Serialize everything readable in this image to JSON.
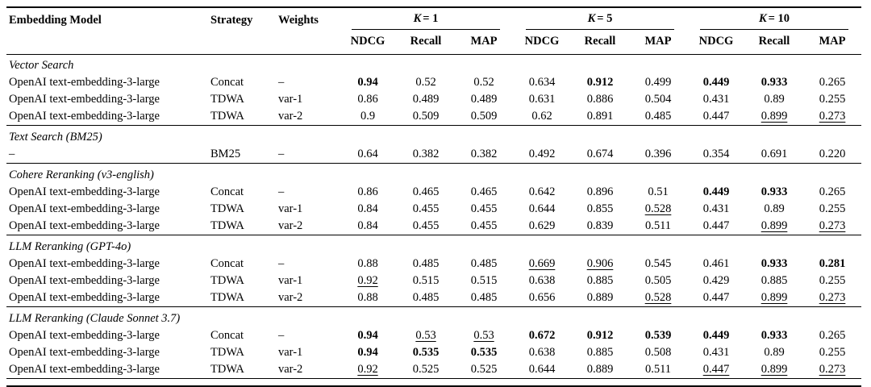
{
  "colors": {
    "background": "#ffffff",
    "text": "#000000",
    "rule": "#000000"
  },
  "table": {
    "columns": [
      "Embedding Model",
      "Strategy",
      "Weights"
    ],
    "k_groups": [
      {
        "symbol": "K",
        "rest": "= 1"
      },
      {
        "symbol": "K",
        "rest": "= 5"
      },
      {
        "symbol": "K",
        "rest": "= 10"
      }
    ],
    "metric_headers": [
      "NDCG",
      "Recall",
      "MAP",
      "NDCG",
      "Recall",
      "MAP",
      "NDCG",
      "Recall",
      "MAP"
    ],
    "sections": [
      {
        "title": "Vector Search",
        "rows": [
          {
            "model": "OpenAI text-embedding-3-large",
            "strategy": "Concat",
            "weights": "–",
            "values": [
              {
                "v": "0.94",
                "f": "b"
              },
              {
                "v": "0.52",
                "f": ""
              },
              {
                "v": "0.52",
                "f": ""
              },
              {
                "v": "0.634",
                "f": ""
              },
              {
                "v": "0.912",
                "f": "b"
              },
              {
                "v": "0.499",
                "f": ""
              },
              {
                "v": "0.449",
                "f": "b"
              },
              {
                "v": "0.933",
                "f": "b"
              },
              {
                "v": "0.265",
                "f": ""
              }
            ]
          },
          {
            "model": "OpenAI text-embedding-3-large",
            "strategy": "TDWA",
            "weights": "var-1",
            "values": [
              {
                "v": "0.86",
                "f": ""
              },
              {
                "v": "0.489",
                "f": ""
              },
              {
                "v": "0.489",
                "f": ""
              },
              {
                "v": "0.631",
                "f": ""
              },
              {
                "v": "0.886",
                "f": ""
              },
              {
                "v": "0.504",
                "f": ""
              },
              {
                "v": "0.431",
                "f": ""
              },
              {
                "v": "0.89",
                "f": ""
              },
              {
                "v": "0.255",
                "f": ""
              }
            ]
          },
          {
            "model": "OpenAI text-embedding-3-large",
            "strategy": "TDWA",
            "weights": "var-2",
            "values": [
              {
                "v": "0.9",
                "f": ""
              },
              {
                "v": "0.509",
                "f": ""
              },
              {
                "v": "0.509",
                "f": ""
              },
              {
                "v": "0.62",
                "f": ""
              },
              {
                "v": "0.891",
                "f": ""
              },
              {
                "v": "0.485",
                "f": ""
              },
              {
                "v": "0.447",
                "f": ""
              },
              {
                "v": "0.899",
                "f": "u"
              },
              {
                "v": "0.273",
                "f": "u"
              }
            ]
          }
        ]
      },
      {
        "title": "Text Search (BM25)",
        "rows": [
          {
            "model": "–",
            "strategy": "BM25",
            "weights": "–",
            "values": [
              {
                "v": "0.64",
                "f": ""
              },
              {
                "v": "0.382",
                "f": ""
              },
              {
                "v": "0.382",
                "f": ""
              },
              {
                "v": "0.492",
                "f": ""
              },
              {
                "v": "0.674",
                "f": ""
              },
              {
                "v": "0.396",
                "f": ""
              },
              {
                "v": "0.354",
                "f": ""
              },
              {
                "v": "0.691",
                "f": ""
              },
              {
                "v": "0.220",
                "f": ""
              }
            ]
          }
        ]
      },
      {
        "title": "Cohere Reranking (v3-english)",
        "rows": [
          {
            "model": "OpenAI text-embedding-3-large",
            "strategy": "Concat",
            "weights": "–",
            "values": [
              {
                "v": "0.86",
                "f": ""
              },
              {
                "v": "0.465",
                "f": ""
              },
              {
                "v": "0.465",
                "f": ""
              },
              {
                "v": "0.642",
                "f": ""
              },
              {
                "v": "0.896",
                "f": ""
              },
              {
                "v": "0.51",
                "f": ""
              },
              {
                "v": "0.449",
                "f": "b"
              },
              {
                "v": "0.933",
                "f": "b"
              },
              {
                "v": "0.265",
                "f": ""
              }
            ]
          },
          {
            "model": "OpenAI text-embedding-3-large",
            "strategy": "TDWA",
            "weights": "var-1",
            "values": [
              {
                "v": "0.84",
                "f": ""
              },
              {
                "v": "0.455",
                "f": ""
              },
              {
                "v": "0.455",
                "f": ""
              },
              {
                "v": "0.644",
                "f": ""
              },
              {
                "v": "0.855",
                "f": ""
              },
              {
                "v": "0.528",
                "f": "u"
              },
              {
                "v": "0.431",
                "f": ""
              },
              {
                "v": "0.89",
                "f": ""
              },
              {
                "v": "0.255",
                "f": ""
              }
            ]
          },
          {
            "model": "OpenAI text-embedding-3-large",
            "strategy": "TDWA",
            "weights": "var-2",
            "values": [
              {
                "v": "0.84",
                "f": ""
              },
              {
                "v": "0.455",
                "f": ""
              },
              {
                "v": "0.455",
                "f": ""
              },
              {
                "v": "0.629",
                "f": ""
              },
              {
                "v": "0.839",
                "f": ""
              },
              {
                "v": "0.511",
                "f": ""
              },
              {
                "v": "0.447",
                "f": ""
              },
              {
                "v": "0.899",
                "f": "u"
              },
              {
                "v": "0.273",
                "f": "u"
              }
            ]
          }
        ]
      },
      {
        "title": "LLM Reranking (GPT-4o)",
        "rows": [
          {
            "model": "OpenAI text-embedding-3-large",
            "strategy": "Concat",
            "weights": "–",
            "values": [
              {
                "v": "0.88",
                "f": ""
              },
              {
                "v": "0.485",
                "f": ""
              },
              {
                "v": "0.485",
                "f": ""
              },
              {
                "v": "0.669",
                "f": "u"
              },
              {
                "v": "0.906",
                "f": "u"
              },
              {
                "v": "0.545",
                "f": ""
              },
              {
                "v": "0.461",
                "f": ""
              },
              {
                "v": "0.933",
                "f": "b"
              },
              {
                "v": "0.281",
                "f": "b"
              }
            ]
          },
          {
            "model": "OpenAI text-embedding-3-large",
            "strategy": "TDWA",
            "weights": "var-1",
            "values": [
              {
                "v": "0.92",
                "f": "u"
              },
              {
                "v": "0.515",
                "f": ""
              },
              {
                "v": "0.515",
                "f": ""
              },
              {
                "v": "0.638",
                "f": ""
              },
              {
                "v": "0.885",
                "f": ""
              },
              {
                "v": "0.505",
                "f": ""
              },
              {
                "v": "0.429",
                "f": ""
              },
              {
                "v": "0.885",
                "f": ""
              },
              {
                "v": "0.255",
                "f": ""
              }
            ]
          },
          {
            "model": "OpenAI text-embedding-3-large",
            "strategy": "TDWA",
            "weights": "var-2",
            "values": [
              {
                "v": "0.88",
                "f": ""
              },
              {
                "v": "0.485",
                "f": ""
              },
              {
                "v": "0.485",
                "f": ""
              },
              {
                "v": "0.656",
                "f": ""
              },
              {
                "v": "0.889",
                "f": ""
              },
              {
                "v": "0.528",
                "f": "u"
              },
              {
                "v": "0.447",
                "f": ""
              },
              {
                "v": "0.899",
                "f": "u"
              },
              {
                "v": "0.273",
                "f": "u"
              }
            ]
          }
        ]
      },
      {
        "title": "LLM Reranking (Claude Sonnet 3.7)",
        "rows": [
          {
            "model": "OpenAI text-embedding-3-large",
            "strategy": "Concat",
            "weights": "–",
            "values": [
              {
                "v": "0.94",
                "f": "b"
              },
              {
                "v": "0.53",
                "f": "u"
              },
              {
                "v": "0.53",
                "f": "u"
              },
              {
                "v": "0.672",
                "f": "b"
              },
              {
                "v": "0.912",
                "f": "b"
              },
              {
                "v": "0.539",
                "f": "b"
              },
              {
                "v": "0.449",
                "f": "b"
              },
              {
                "v": "0.933",
                "f": "b"
              },
              {
                "v": "0.265",
                "f": ""
              }
            ]
          },
          {
            "model": "OpenAI text-embedding-3-large",
            "strategy": "TDWA",
            "weights": "var-1",
            "values": [
              {
                "v": "0.94",
                "f": "b"
              },
              {
                "v": "0.535",
                "f": "b"
              },
              {
                "v": "0.535",
                "f": "b"
              },
              {
                "v": "0.638",
                "f": ""
              },
              {
                "v": "0.885",
                "f": ""
              },
              {
                "v": "0.508",
                "f": ""
              },
              {
                "v": "0.431",
                "f": ""
              },
              {
                "v": "0.89",
                "f": ""
              },
              {
                "v": "0.255",
                "f": ""
              }
            ]
          },
          {
            "model": "OpenAI text-embedding-3-large",
            "strategy": "TDWA",
            "weights": "var-2",
            "values": [
              {
                "v": "0.92",
                "f": "u"
              },
              {
                "v": "0.525",
                "f": ""
              },
              {
                "v": "0.525",
                "f": ""
              },
              {
                "v": "0.644",
                "f": ""
              },
              {
                "v": "0.889",
                "f": ""
              },
              {
                "v": "0.511",
                "f": ""
              },
              {
                "v": "0.447",
                "f": "u"
              },
              {
                "v": "0.899",
                "f": "u"
              },
              {
                "v": "0.273",
                "f": "u"
              }
            ]
          }
        ]
      }
    ]
  }
}
